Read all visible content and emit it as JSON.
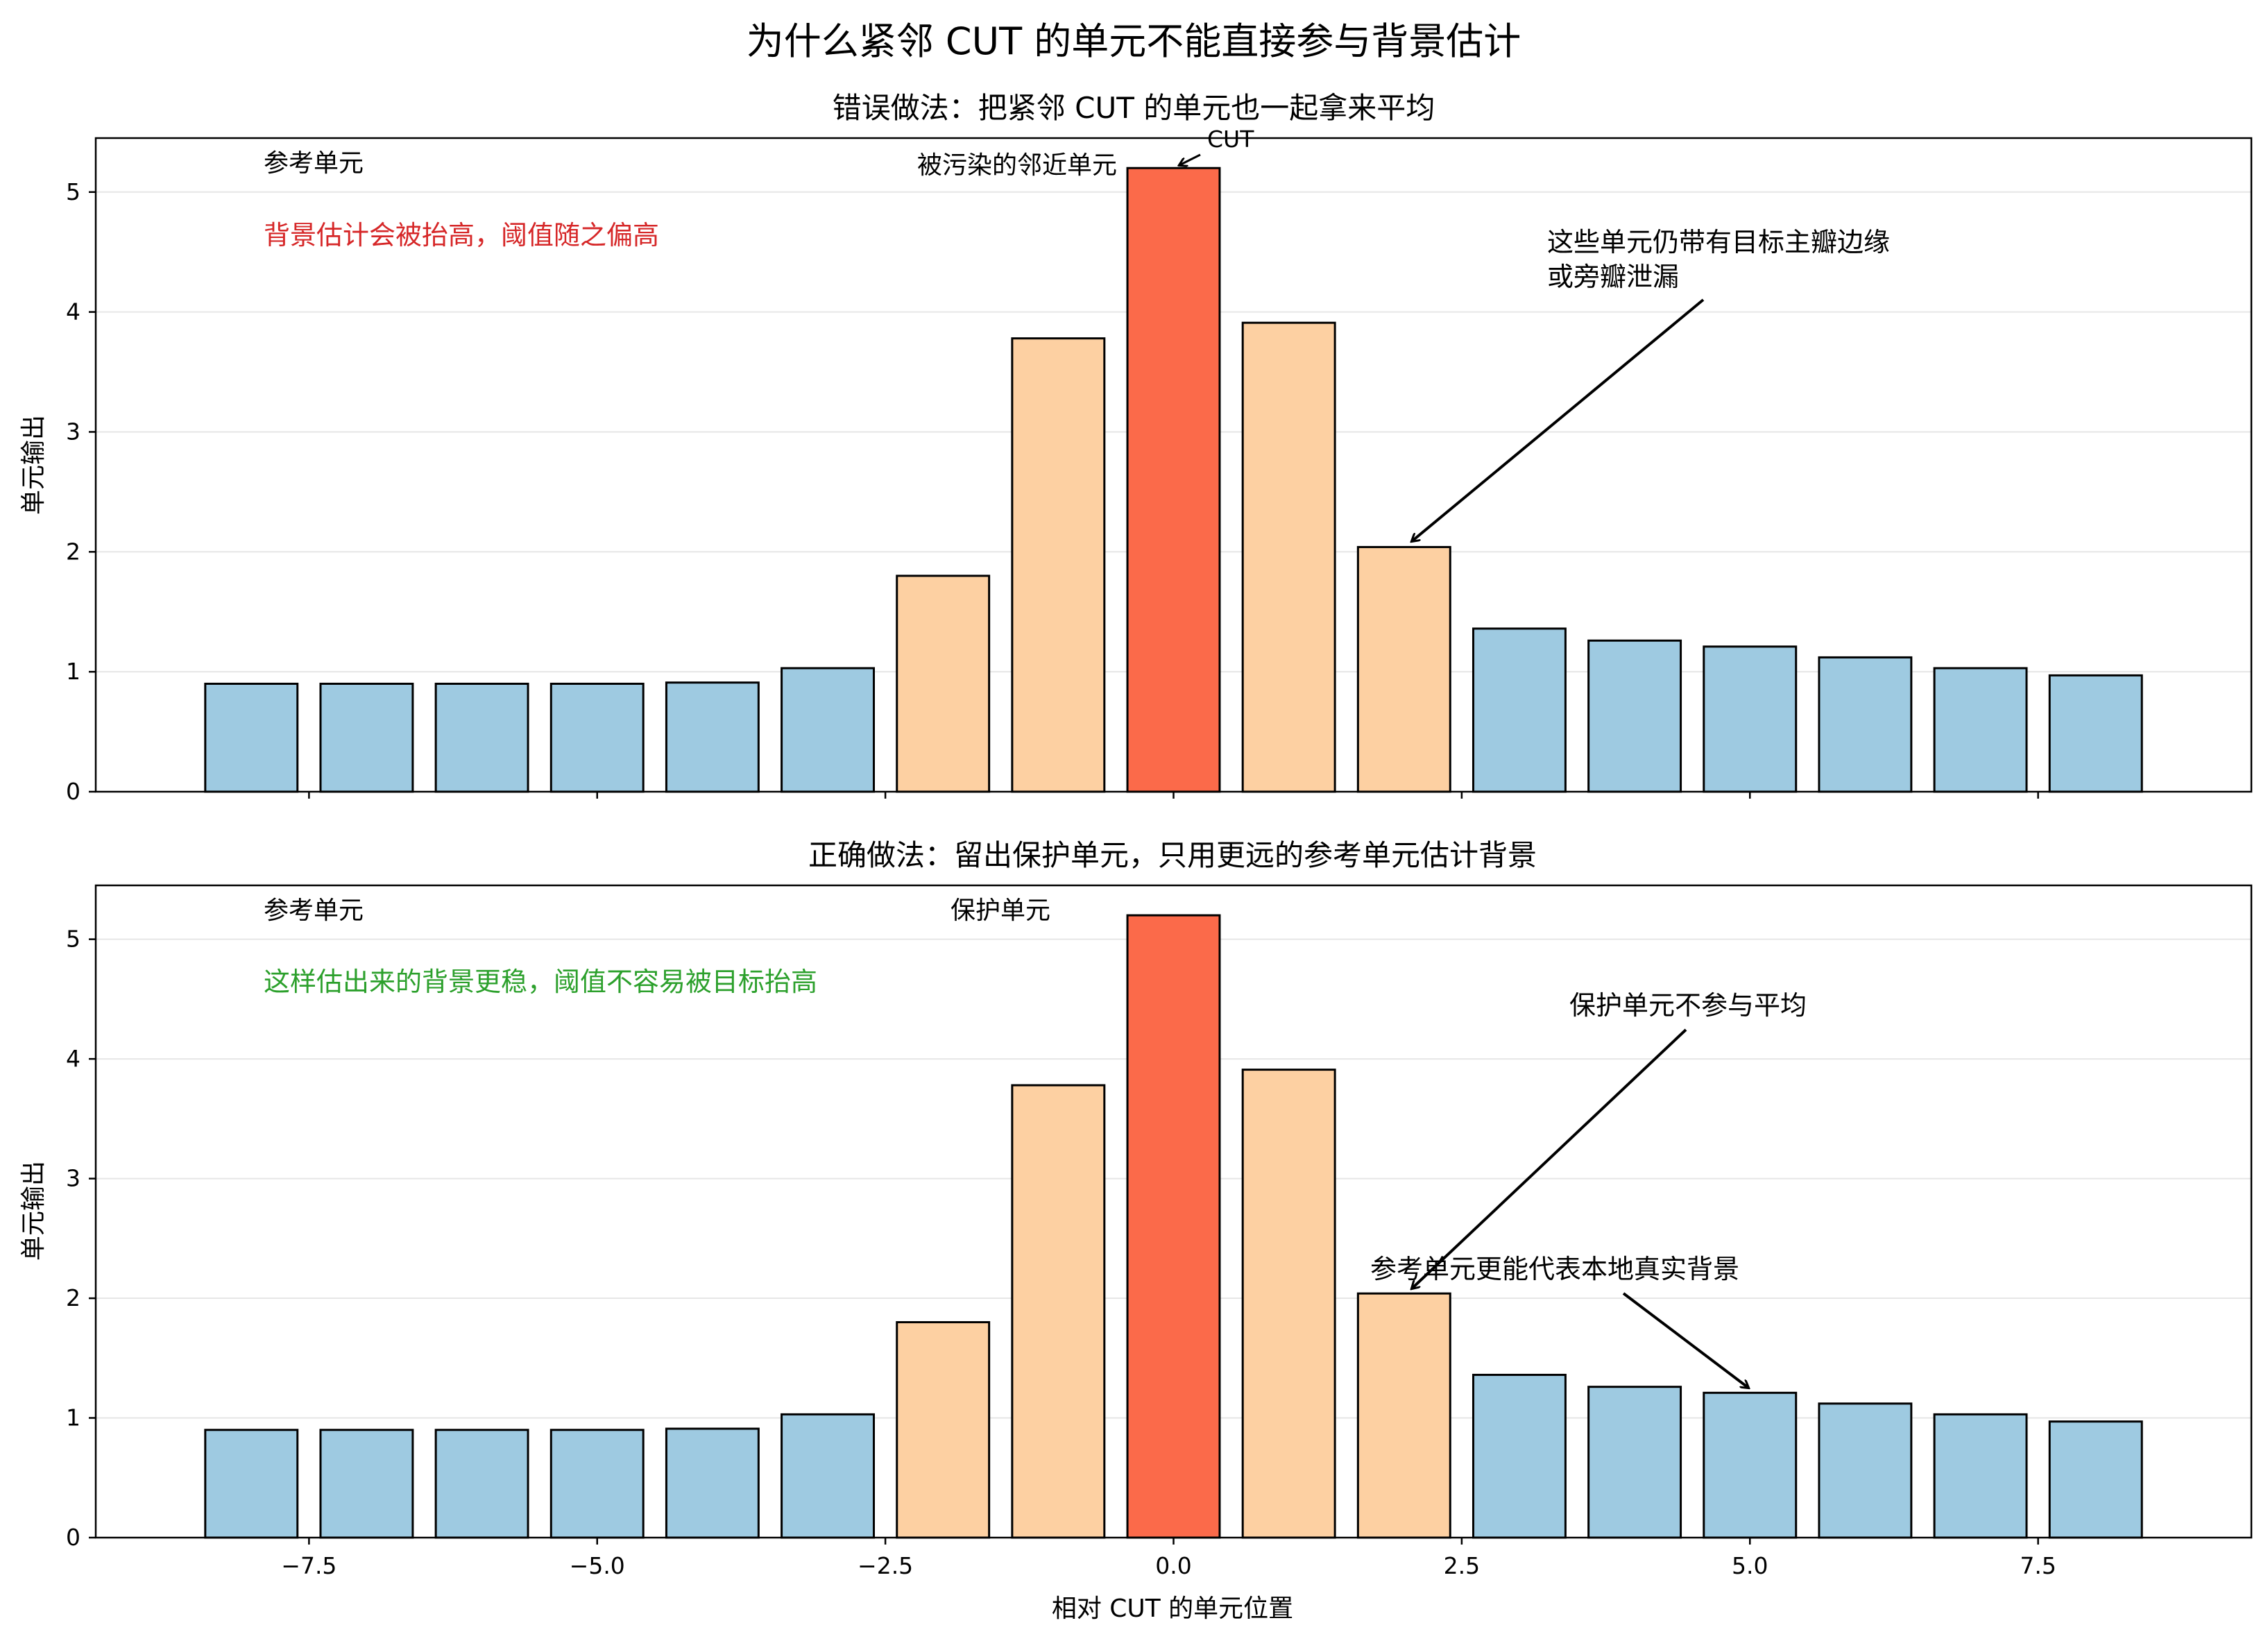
{
  "title": "为什么紧邻 CUT 的单元不能直接参与背景估计",
  "colors": {
    "reference": "#9ecae1",
    "guard": "#fdd0a2",
    "cut": "#fb6a4a",
    "edge": "#000000",
    "grid": "#e6e6e6",
    "warn_text": "#d62728",
    "ok_text": "#2ca02c"
  },
  "chart_data": [
    {
      "type": "bar",
      "title": "错误做法：把紧邻 CUT 的单元也一起拿来平均",
      "ylabel": "单元输出",
      "xlabel": "",
      "x": [
        -8,
        -7,
        -6,
        -5,
        -4,
        -3,
        -2,
        -1,
        0,
        1,
        2,
        3,
        4,
        5,
        6,
        7,
        8
      ],
      "values": [
        0.9,
        0.9,
        0.9,
        0.9,
        0.91,
        1.03,
        1.8,
        3.78,
        5.2,
        3.91,
        2.04,
        1.36,
        1.26,
        1.21,
        1.12,
        1.03,
        0.97
      ],
      "categories_kind": [
        "reference",
        "reference",
        "reference",
        "reference",
        "reference",
        "reference",
        "guard",
        "guard",
        "cut",
        "guard",
        "guard",
        "reference",
        "reference",
        "reference",
        "reference",
        "reference",
        "reference"
      ],
      "xlim": [
        -9.35,
        9.35
      ],
      "ylim": [
        0,
        5.45
      ],
      "xticks": [
        -7.5,
        -5.0,
        -2.5,
        0.0,
        2.5,
        5.0,
        7.5
      ],
      "yticks": [
        0,
        1,
        2,
        3,
        4,
        5
      ],
      "show_xtick_labels": false,
      "grid": "y",
      "labels": {
        "reference": "参考单元",
        "contaminated": "被污染的邻近单元",
        "cut": "CUT",
        "note": "背景估计会被抬高，阈值随之偏高",
        "arrow_note_1": "这些单元仍带有目标主瓣边缘",
        "arrow_note_2": "或旁瓣泄漏"
      }
    },
    {
      "type": "bar",
      "title": "正确做法：留出保护单元，只用更远的参考单元估计背景",
      "ylabel": "单元输出",
      "xlabel": "相对 CUT 的单元位置",
      "x": [
        -8,
        -7,
        -6,
        -5,
        -4,
        -3,
        -2,
        -1,
        0,
        1,
        2,
        3,
        4,
        5,
        6,
        7,
        8
      ],
      "values": [
        0.9,
        0.9,
        0.9,
        0.9,
        0.91,
        1.03,
        1.8,
        3.78,
        5.2,
        3.91,
        2.04,
        1.36,
        1.26,
        1.21,
        1.12,
        1.03,
        0.97
      ],
      "categories_kind": [
        "reference",
        "reference",
        "reference",
        "reference",
        "reference",
        "reference",
        "guard",
        "guard",
        "cut",
        "guard",
        "guard",
        "reference",
        "reference",
        "reference",
        "reference",
        "reference",
        "reference"
      ],
      "xlim": [
        -9.35,
        9.35
      ],
      "ylim": [
        0,
        5.45
      ],
      "xticks": [
        -7.5,
        -5.0,
        -2.5,
        0.0,
        2.5,
        5.0,
        7.5
      ],
      "yticks": [
        0,
        1,
        2,
        3,
        4,
        5
      ],
      "show_xtick_labels": true,
      "grid": "y",
      "labels": {
        "reference": "参考单元",
        "guard": "保护单元",
        "note": "这样估出来的背景更稳，阈值不容易被目标抬高",
        "arrow_note_1": "保护单元不参与平均",
        "arrow_note_2": "参考单元更能代表本地真实背景"
      }
    }
  ]
}
